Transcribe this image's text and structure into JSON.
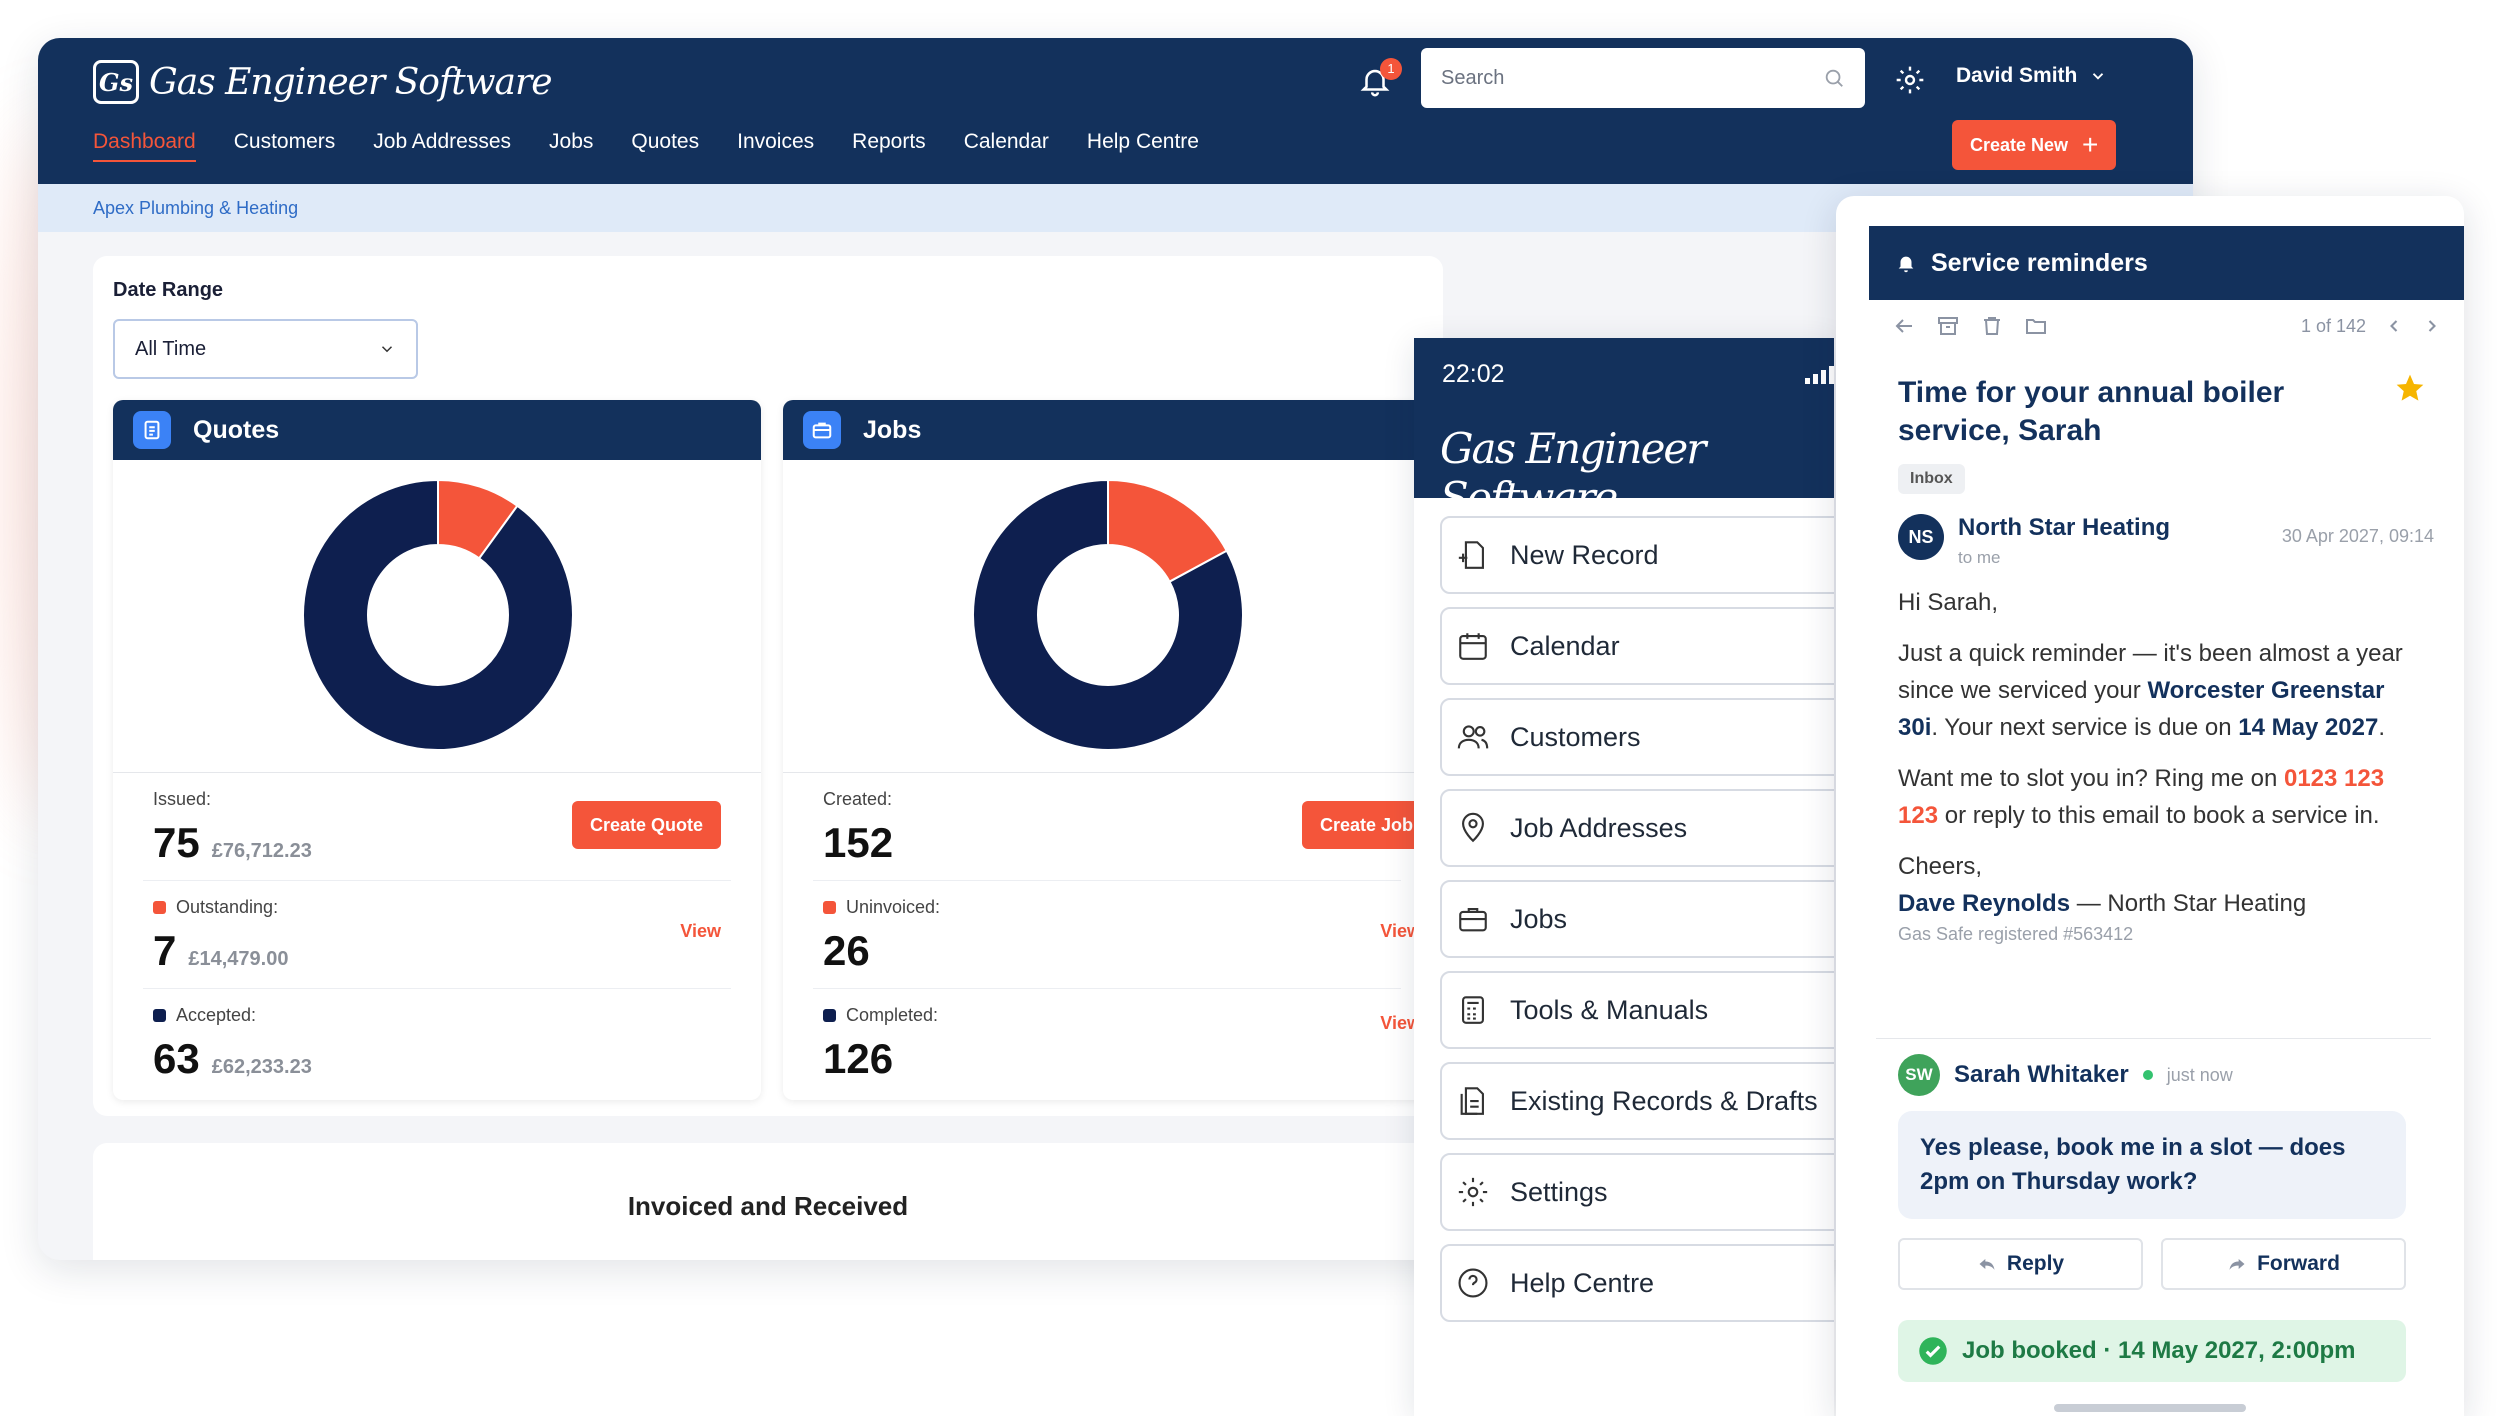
{
  "app": {
    "logo_text": "Gas Engineer Software",
    "logo_mark": "Gs"
  },
  "nav": [
    "Dashboard",
    "Customers",
    "Job Addresses",
    "Jobs",
    "Quotes",
    "Invoices",
    "Reports",
    "Calendar",
    "Help Centre"
  ],
  "header": {
    "notification_count": "1",
    "search_placeholder": "Search",
    "user_name": "David Smith",
    "create_new": "Create New"
  },
  "breadcrumb": "Apex Plumbing & Heating",
  "filters": {
    "date_range_label": "Date Range",
    "date_range_value": "All Time"
  },
  "quotes": {
    "title": "Quotes",
    "issued_label": "Issued:",
    "issued_count": "75",
    "issued_amount": "£76,712.23",
    "create_label": "Create Quote",
    "outstanding_label": "Outstanding:",
    "outstanding_count": "7",
    "outstanding_amount": "£14,479.00",
    "accepted_label": "Accepted:",
    "accepted_count": "63",
    "accepted_amount": "£62,233.23",
    "view_label": "View"
  },
  "jobs": {
    "title": "Jobs",
    "created_label": "Created:",
    "created_count": "152",
    "create_label": "Create Job",
    "uninvoiced_label": "Uninvoiced:",
    "uninvoiced_count": "26",
    "completed_label": "Completed:",
    "completed_count": "126",
    "view_label": "View"
  },
  "invoiced_title": "Invoiced and Received",
  "chart_data": [
    {
      "type": "pie",
      "title": "Quotes",
      "series": [
        {
          "name": "Outstanding",
          "values": [
            7
          ],
          "color": "#f4553a"
        },
        {
          "name": "Accepted",
          "values": [
            63
          ],
          "color": "#0e1f4f"
        }
      ]
    },
    {
      "type": "pie",
      "title": "Jobs",
      "series": [
        {
          "name": "Uninvoiced",
          "values": [
            26
          ],
          "color": "#f4553a"
        },
        {
          "name": "Completed",
          "values": [
            126
          ],
          "color": "#0e1f4f"
        }
      ]
    }
  ],
  "phone": {
    "time": "22:02",
    "logo_text": "Gas Engineer Software",
    "menu": [
      {
        "label": "New Record",
        "icon": "new-record-icon"
      },
      {
        "label": "Calendar",
        "icon": "calendar-icon"
      },
      {
        "label": "Customers",
        "icon": "customers-icon"
      },
      {
        "label": "Job Addresses",
        "icon": "location-pin-icon"
      },
      {
        "label": "Jobs",
        "icon": "briefcase-icon"
      },
      {
        "label": "Tools & Manuals",
        "icon": "calculator-icon"
      },
      {
        "label": "Existing Records & Drafts",
        "icon": "records-icon"
      },
      {
        "label": "Settings",
        "icon": "gear-icon"
      },
      {
        "label": "Help Centre",
        "icon": "help-icon"
      }
    ]
  },
  "email": {
    "header": "Service reminders",
    "pager": "1 of 142",
    "subject": "Time for your annual boiler service, Sarah",
    "folder": "Inbox",
    "sender_initials": "NS",
    "sender_name": "North Star Heating",
    "sender_to": "to me",
    "date": "30 Apr 2027, 09:14",
    "greeting": "Hi Sarah,",
    "p1_a": "Just a quick reminder — it's been almost a year since we serviced your ",
    "p1_b": "Worcester Greenstar 30i",
    "p1_c": ". Your next service is due on ",
    "p1_d": "14 May 2027",
    "p1_e": ".",
    "p2_a": "Want me to slot you in? Ring me on ",
    "p2_b": "0123 123 123",
    "p2_c": " or reply to this email to book a service in.",
    "signoff": "Cheers,",
    "sig_name": "Dave Reynolds",
    "sig_company": " — North Star Heating",
    "gas_safe": "Gas Safe registered #563412",
    "reply_initials": "SW",
    "reply_name": "Sarah Whitaker",
    "reply_time": "just now",
    "reply_text": "Yes please, book me in a slot — does 2pm on Thursday work?",
    "reply_btn": "Reply",
    "forward_btn": "Forward",
    "booked": "Job booked · 14 May 2027, 2:00pm"
  }
}
